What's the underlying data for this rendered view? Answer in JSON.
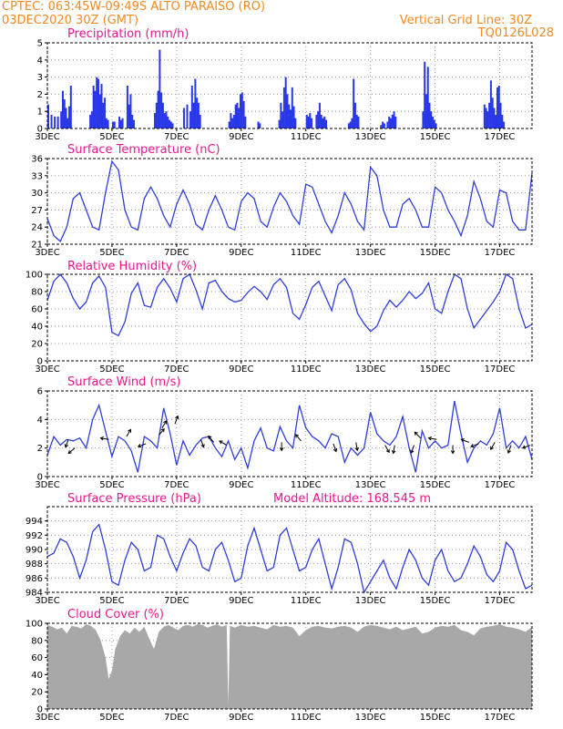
{
  "header": {
    "left_line1": "CPTEC:   063:45W-09:49S  ALTO PARAISO (RO)",
    "left_line2": "03DEC2020 30Z (GMT)",
    "right_line1": "Vertical Grid Line: 30Z",
    "right_line2": "TQ0126L028"
  },
  "colors": {
    "header": "#f08a24",
    "title": "#e8188c",
    "series": "#2f3fd8",
    "bars": "#2838e8",
    "cloud": "#a8a8a8",
    "arrow": "#000000"
  },
  "x_axis": {
    "tick_labels": [
      "3DEC",
      "5DEC",
      "7DEC",
      "9DEC",
      "11DEC",
      "13DEC",
      "15DEC",
      "17DEC"
    ],
    "tick_days": [
      3,
      5,
      7,
      9,
      11,
      13,
      15,
      17
    ],
    "start_day": 3,
    "end_day": 18
  },
  "panels": {
    "precip": {
      "title": "Precipitation (mm/h)"
    },
    "temp": {
      "title": "Surface Temperature (nC)"
    },
    "rh": {
      "title": "Relative Humidity (%)"
    },
    "wind": {
      "title": "Surface Wind (m/s)"
    },
    "pres": {
      "title": "Surface Pressure (hPa)",
      "extra": "Model Altitude: 168.545 m"
    },
    "cloud": {
      "title": "Cloud Cover (%)"
    }
  },
  "chart_data": [
    {
      "id": "precip",
      "type": "bar",
      "title": "Precipitation (mm/h)",
      "ylim": [
        0,
        5
      ],
      "yticks": [
        0,
        1,
        2,
        3,
        4,
        5
      ],
      "grid": true,
      "x": [
        3.0,
        3.1,
        3.2,
        3.3,
        3.4,
        3.45,
        3.5,
        3.55,
        3.6,
        3.65,
        3.7,
        4.3,
        4.35,
        4.4,
        4.45,
        4.5,
        4.55,
        4.6,
        4.65,
        4.7,
        4.75,
        4.8,
        4.85,
        5.0,
        5.05,
        5.2,
        5.25,
        5.3,
        5.45,
        5.5,
        5.55,
        5.6,
        5.65,
        6.3,
        6.35,
        6.4,
        6.45,
        6.5,
        6.55,
        6.6,
        6.65,
        6.7,
        6.75,
        6.8,
        6.85,
        7.2,
        7.3,
        7.4,
        7.45,
        7.5,
        7.55,
        7.6,
        7.65,
        7.7,
        8.6,
        8.65,
        8.7,
        8.75,
        8.8,
        8.85,
        8.9,
        8.95,
        9.0,
        9.05,
        9.1,
        9.5,
        9.55,
        10.15,
        10.2,
        10.25,
        10.3,
        10.35,
        10.4,
        10.45,
        10.5,
        10.55,
        10.6,
        10.65,
        11.0,
        11.05,
        11.1,
        11.15,
        11.3,
        11.35,
        11.4,
        11.45,
        11.5,
        11.55,
        11.6,
        12.3,
        12.35,
        12.4,
        12.45,
        12.5,
        12.55,
        12.6,
        13.3,
        13.35,
        13.4,
        13.5,
        13.55,
        13.6,
        13.65,
        13.7,
        13.75,
        14.6,
        14.65,
        14.7,
        14.75,
        14.8,
        14.85,
        14.9,
        14.95,
        15.0,
        16.5,
        16.55,
        16.6,
        16.65,
        16.7,
        16.75,
        16.8,
        16.85,
        16.9,
        16.95,
        17.0,
        17.05,
        17.1
      ],
      "values": [
        1.4,
        0.8,
        0.7,
        0.7,
        1.0,
        2.2,
        1.7,
        1.2,
        0.6,
        1.3,
        2.5,
        0.8,
        1.0,
        2.5,
        2.2,
        3.0,
        2.9,
        2.0,
        2.6,
        1.5,
        1.8,
        0.6,
        0.5,
        0.4,
        0.4,
        0.7,
        0.5,
        0.6,
        2.5,
        1.4,
        2.0,
        0.8,
        0.5,
        0.9,
        1.5,
        2.2,
        4.6,
        2.1,
        1.5,
        0.9,
        1.0,
        0.7,
        0.5,
        0.4,
        0.3,
        1.2,
        1.4,
        1.0,
        2.5,
        1.5,
        2.9,
        1.8,
        1.5,
        0.8,
        0.4,
        0.9,
        0.6,
        0.8,
        1.4,
        1.5,
        1.2,
        2.0,
        2.1,
        1.6,
        0.7,
        0.4,
        0.3,
        0.5,
        1.5,
        1.0,
        2.4,
        3.0,
        2.0,
        1.4,
        1.1,
        2.4,
        1.3,
        0.6,
        0.8,
        0.7,
        0.9,
        0.6,
        0.8,
        1.0,
        1.5,
        0.8,
        0.6,
        0.7,
        0.5,
        0.3,
        0.4,
        0.6,
        2.9,
        1.5,
        0.8,
        0.7,
        0.2,
        0.4,
        0.3,
        0.4,
        0.7,
        0.6,
        0.8,
        1.0,
        0.7,
        1.0,
        3.9,
        2.0,
        3.6,
        1.5,
        1.0,
        0.7,
        0.5,
        0.3,
        1.4,
        1.2,
        1.0,
        1.5,
        2.8,
        1.8,
        1.2,
        0.8,
        2.4,
        2.5,
        1.5,
        0.8,
        0.4
      ]
    },
    {
      "id": "temp",
      "type": "line",
      "title": "Surface Temperature (nC)",
      "ylim": [
        21,
        36
      ],
      "yticks": [
        21,
        24,
        27,
        30,
        33,
        36
      ],
      "grid": true,
      "x": [
        3.0,
        3.2,
        3.4,
        3.6,
        3.8,
        4.0,
        4.2,
        4.4,
        4.6,
        4.8,
        5.0,
        5.2,
        5.4,
        5.6,
        5.8,
        6.0,
        6.2,
        6.4,
        6.6,
        6.8,
        7.0,
        7.2,
        7.4,
        7.6,
        7.8,
        8.0,
        8.2,
        8.4,
        8.6,
        8.8,
        9.0,
        9.2,
        9.4,
        9.6,
        9.8,
        10.0,
        10.2,
        10.4,
        10.6,
        10.8,
        11.0,
        11.2,
        11.4,
        11.6,
        11.8,
        12.0,
        12.2,
        12.4,
        12.6,
        12.8,
        13.0,
        13.2,
        13.4,
        13.6,
        13.8,
        14.0,
        14.2,
        14.4,
        14.6,
        14.8,
        15.0,
        15.2,
        15.4,
        15.6,
        15.8,
        16.0,
        16.2,
        16.4,
        16.6,
        16.8,
        17.0,
        17.2,
        17.4,
        17.6,
        17.8,
        18.0
      ],
      "values": [
        25.5,
        22.5,
        21.5,
        24,
        29,
        30,
        27,
        24,
        23.5,
        30,
        35.5,
        34,
        27,
        24,
        23.5,
        29,
        31,
        29,
        26,
        24,
        28,
        30.5,
        28,
        24.5,
        23.5,
        27,
        29.5,
        27,
        24,
        23.5,
        28.5,
        30,
        29,
        25,
        24,
        27.5,
        30,
        28.5,
        26,
        24.5,
        31.5,
        31,
        28,
        25,
        23,
        26,
        30,
        28,
        25,
        23.5,
        34.5,
        33,
        27,
        24,
        24,
        28,
        29,
        27,
        24,
        24,
        31,
        30,
        27,
        25,
        22.5,
        26,
        32,
        29,
        25,
        24,
        30.5,
        30,
        25,
        23.5,
        23.5,
        33.5
      ]
    },
    {
      "id": "rh",
      "type": "line",
      "title": "Relative Humidity (%)",
      "ylim": [
        0,
        100
      ],
      "yticks": [
        0,
        20,
        40,
        60,
        80,
        100
      ],
      "grid": true,
      "x": [
        3.0,
        3.2,
        3.4,
        3.6,
        3.8,
        4.0,
        4.2,
        4.4,
        4.6,
        4.8,
        5.0,
        5.2,
        5.4,
        5.6,
        5.8,
        6.0,
        6.2,
        6.4,
        6.6,
        6.8,
        7.0,
        7.2,
        7.4,
        7.6,
        7.8,
        8.0,
        8.2,
        8.4,
        8.6,
        8.8,
        9.0,
        9.2,
        9.4,
        9.6,
        9.8,
        10.0,
        10.2,
        10.4,
        10.6,
        10.8,
        11.0,
        11.2,
        11.4,
        11.6,
        11.8,
        12.0,
        12.2,
        12.4,
        12.6,
        12.8,
        13.0,
        13.2,
        13.4,
        13.6,
        13.8,
        14.0,
        14.2,
        14.4,
        14.6,
        14.8,
        15.0,
        15.2,
        15.4,
        15.6,
        15.8,
        16.0,
        16.2,
        16.4,
        16.6,
        16.8,
        17.0,
        17.2,
        17.4,
        17.6,
        17.8,
        18.0
      ],
      "values": [
        70,
        92,
        100,
        90,
        72,
        60,
        68,
        90,
        98,
        85,
        33,
        29,
        45,
        78,
        90,
        64,
        62,
        85,
        95,
        84,
        68,
        95,
        100,
        82,
        60,
        90,
        93,
        80,
        72,
        68,
        70,
        79,
        86,
        80,
        71,
        88,
        95,
        85,
        55,
        48,
        65,
        85,
        92,
        75,
        58,
        88,
        95,
        82,
        55,
        43,
        34,
        40,
        58,
        70,
        62,
        70,
        80,
        72,
        78,
        90,
        60,
        55,
        80,
        100,
        95,
        60,
        38,
        48,
        58,
        68,
        80,
        100,
        95,
        60,
        38,
        42
      ]
    },
    {
      "id": "wind",
      "type": "line",
      "title": "Surface Wind (m/s)",
      "ylim": [
        0,
        6
      ],
      "yticks": [
        0,
        2,
        4,
        6
      ],
      "grid": true,
      "x": [
        3.0,
        3.2,
        3.4,
        3.6,
        3.8,
        4.0,
        4.2,
        4.4,
        4.6,
        4.8,
        5.0,
        5.2,
        5.4,
        5.6,
        5.8,
        6.0,
        6.2,
        6.4,
        6.6,
        6.8,
        7.0,
        7.2,
        7.4,
        7.6,
        7.8,
        8.0,
        8.2,
        8.4,
        8.6,
        8.8,
        9.0,
        9.2,
        9.4,
        9.6,
        9.8,
        10.0,
        10.2,
        10.4,
        10.6,
        10.8,
        11.0,
        11.2,
        11.4,
        11.6,
        11.8,
        12.0,
        12.2,
        12.4,
        12.6,
        12.8,
        13.0,
        13.2,
        13.4,
        13.6,
        13.8,
        14.0,
        14.2,
        14.4,
        14.6,
        14.8,
        15.0,
        15.2,
        15.4,
        15.6,
        15.8,
        16.0,
        16.2,
        16.4,
        16.6,
        16.8,
        17.0,
        17.2,
        17.4,
        17.6,
        17.8,
        18.0
      ],
      "values": [
        1.5,
        2.8,
        2.2,
        2.6,
        2.5,
        2.7,
        2.0,
        4.0,
        5.0,
        3.2,
        1.4,
        2.8,
        2.5,
        1.8,
        0.3,
        2.8,
        2.5,
        2.0,
        4.8,
        3.0,
        0.8,
        2.5,
        1.5,
        2.2,
        2.7,
        2.8,
        2.0,
        1.4,
        2.5,
        1.2,
        2.0,
        0.6,
        2.5,
        3.4,
        2.0,
        1.8,
        3.5,
        2.5,
        2.0,
        5.0,
        3.4,
        2.8,
        2.5,
        2.0,
        3.0,
        2.8,
        1.0,
        2.0,
        1.5,
        2.0,
        4.5,
        3.0,
        2.5,
        2.2,
        2.8,
        4.2,
        2.0,
        0.3,
        3.2,
        2.0,
        2.5,
        2.0,
        2.2,
        5.3,
        3.0,
        1.0,
        2.0,
        2.5,
        2.2,
        3.0,
        4.8,
        2.0,
        2.5,
        2.0,
        2.8,
        1.2
      ],
      "arrows": [
        {
          "x": 3.65,
          "y": 2.6,
          "dir": 200
        },
        {
          "x": 3.85,
          "y": 2.0,
          "dir": 230
        },
        {
          "x": 4.9,
          "y": 2.6,
          "dir": 280
        },
        {
          "x": 5.45,
          "y": 2.8,
          "dir": 30
        },
        {
          "x": 6.05,
          "y": 2.3,
          "dir": 250
        },
        {
          "x": 6.45,
          "y": 2.9,
          "dir": 40
        },
        {
          "x": 6.55,
          "y": 3.4,
          "dir": 30
        },
        {
          "x": 6.95,
          "y": 3.7,
          "dir": 20
        },
        {
          "x": 7.75,
          "y": 2.6,
          "dir": 160
        },
        {
          "x": 8.15,
          "y": 2.4,
          "dir": 320
        },
        {
          "x": 8.55,
          "y": 2.2,
          "dir": 300
        },
        {
          "x": 10.25,
          "y": 2.4,
          "dir": 180
        },
        {
          "x": 10.85,
          "y": 2.5,
          "dir": 320
        },
        {
          "x": 11.85,
          "y": 2.3,
          "dir": 160
        },
        {
          "x": 12.55,
          "y": 2.4,
          "dir": 170
        },
        {
          "x": 13.45,
          "y": 2.2,
          "dir": 150
        },
        {
          "x": 13.75,
          "y": 2.2,
          "dir": 190
        },
        {
          "x": 14.35,
          "y": 2.2,
          "dir": 200
        },
        {
          "x": 14.55,
          "y": 2.7,
          "dir": 315
        },
        {
          "x": 15.05,
          "y": 2.6,
          "dir": 280
        },
        {
          "x": 15.55,
          "y": 2.2,
          "dir": 180
        },
        {
          "x": 16.05,
          "y": 2.4,
          "dir": 290
        },
        {
          "x": 16.35,
          "y": 2.3,
          "dir": 250
        },
        {
          "x": 16.85,
          "y": 2.4,
          "dir": 210
        },
        {
          "x": 17.35,
          "y": 2.2,
          "dir": 200
        },
        {
          "x": 17.95,
          "y": 2.2,
          "dir": 250
        }
      ]
    },
    {
      "id": "pres",
      "type": "line",
      "title": "Surface Pressure (hPa)",
      "ylim": [
        984,
        996
      ],
      "yticks": [
        984,
        986,
        988,
        990,
        992,
        994
      ],
      "grid": true,
      "x": [
        3.0,
        3.2,
        3.4,
        3.6,
        3.8,
        4.0,
        4.2,
        4.4,
        4.6,
        4.8,
        5.0,
        5.2,
        5.4,
        5.6,
        5.8,
        6.0,
        6.2,
        6.4,
        6.6,
        6.8,
        7.0,
        7.2,
        7.4,
        7.6,
        7.8,
        8.0,
        8.2,
        8.4,
        8.6,
        8.8,
        9.0,
        9.2,
        9.4,
        9.6,
        9.8,
        10.0,
        10.2,
        10.4,
        10.6,
        10.8,
        11.0,
        11.2,
        11.4,
        11.6,
        11.8,
        12.0,
        12.2,
        12.4,
        12.6,
        12.8,
        13.0,
        13.2,
        13.4,
        13.6,
        13.8,
        14.0,
        14.2,
        14.4,
        14.6,
        14.8,
        15.0,
        15.2,
        15.4,
        15.6,
        15.8,
        16.0,
        16.2,
        16.4,
        16.6,
        16.8,
        17.0,
        17.2,
        17.4,
        17.6,
        17.8,
        18.0
      ],
      "values": [
        989.0,
        989.5,
        991.5,
        991.0,
        989.0,
        986.0,
        988.5,
        992.5,
        993.5,
        990.0,
        985.5,
        985.0,
        988.5,
        991.0,
        990.0,
        987.0,
        987.5,
        992.0,
        991.5,
        989.0,
        987.0,
        989.5,
        991.5,
        990.5,
        987.5,
        987.0,
        990.0,
        991.0,
        988.5,
        985.5,
        986.0,
        990.5,
        993.0,
        990.0,
        987.0,
        987.5,
        992.0,
        993.0,
        990.0,
        987.0,
        987.5,
        990.0,
        991.5,
        988.0,
        984.5,
        987.5,
        991.5,
        991.0,
        988.0,
        984.0,
        985.5,
        987.0,
        988.5,
        986.0,
        984.5,
        987.5,
        990.0,
        988.5,
        986.0,
        985.0,
        988.5,
        990.0,
        987.0,
        985.5,
        986.0,
        988.0,
        990.5,
        989.0,
        986.5,
        985.5,
        987.0,
        991.0,
        990.0,
        987.0,
        984.5,
        985.0
      ]
    },
    {
      "id": "cloud",
      "type": "area",
      "title": "Cloud Cover (%)",
      "ylim": [
        0,
        100
      ],
      "yticks": [
        0,
        20,
        40,
        60,
        80,
        100
      ],
      "grid": true,
      "x": [
        3.0,
        3.15,
        3.3,
        3.45,
        3.6,
        3.75,
        3.9,
        4.05,
        4.2,
        4.35,
        4.5,
        4.65,
        4.8,
        4.9,
        5.0,
        5.1,
        5.25,
        5.4,
        5.55,
        5.7,
        5.85,
        6.0,
        6.15,
        6.3,
        6.45,
        6.6,
        6.75,
        6.9,
        7.05,
        7.2,
        7.35,
        7.5,
        7.65,
        7.8,
        7.95,
        8.1,
        8.25,
        8.4,
        8.55,
        8.6,
        8.65,
        8.8,
        9.0,
        9.2,
        9.4,
        9.6,
        9.8,
        10.0,
        10.2,
        10.4,
        10.6,
        10.8,
        11.0,
        11.2,
        11.4,
        11.6,
        11.8,
        12.0,
        12.2,
        12.4,
        12.6,
        12.8,
        13.0,
        13.2,
        13.4,
        13.6,
        13.8,
        14.0,
        14.2,
        14.4,
        14.6,
        14.8,
        15.0,
        15.2,
        15.4,
        15.6,
        15.8,
        16.0,
        16.2,
        16.4,
        16.6,
        16.8,
        17.0,
        17.2,
        17.4,
        17.6,
        17.8,
        18.0
      ],
      "values": [
        98,
        96,
        93,
        95,
        88,
        97,
        96,
        94,
        99,
        97,
        92,
        80,
        60,
        35,
        45,
        70,
        85,
        92,
        88,
        95,
        90,
        96,
        82,
        70,
        90,
        96,
        98,
        95,
        92,
        97,
        98,
        96,
        99,
        98,
        95,
        97,
        99,
        96,
        98,
        5,
        97,
        95,
        98,
        96,
        97,
        95,
        93,
        98,
        96,
        97,
        95,
        85,
        92,
        96,
        97,
        95,
        94,
        96,
        97,
        95,
        90,
        96,
        98,
        97,
        95,
        93,
        96,
        92,
        94,
        96,
        88,
        90,
        95,
        97,
        96,
        98,
        92,
        90,
        86,
        94,
        96,
        97,
        99,
        96,
        95,
        93,
        90,
        96
      ]
    }
  ]
}
